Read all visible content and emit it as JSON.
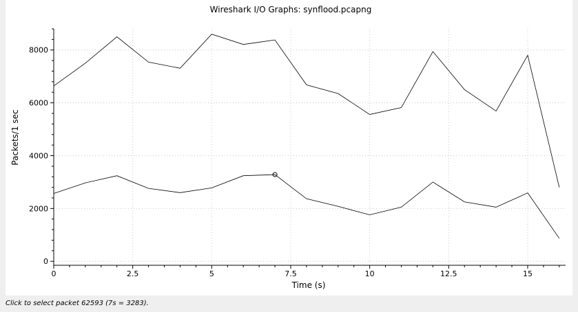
{
  "status_text": "Click to select packet 62593 (7s = 3283).",
  "chart_data": {
    "type": "line",
    "title": "Wireshark I/O Graphs: synflood.pcapng",
    "xlabel": "Time (s)",
    "ylabel": "Packets/1 sec",
    "xlim": [
      0,
      16.2
    ],
    "ylim": [
      -150,
      8800
    ],
    "x_ticks": [
      0,
      2.5,
      5,
      7.5,
      10,
      12.5,
      15
    ],
    "x_tick_labels": [
      "0",
      "2.5",
      "5",
      "7.5",
      "10",
      "12.5",
      "15"
    ],
    "y_ticks": [
      0,
      2000,
      4000,
      6000,
      8000
    ],
    "y_tick_labels": [
      "0",
      "2000",
      "4000",
      "6000",
      "8000"
    ],
    "grid": true,
    "x": [
      0,
      1,
      2,
      3,
      4,
      5,
      6,
      7,
      8,
      9,
      10,
      11,
      12,
      13,
      14,
      15,
      16
    ],
    "series": [
      {
        "color": "#000000",
        "values": [
          6640,
          7500,
          8500,
          7540,
          7310,
          8600,
          8210,
          8380,
          6680,
          6350,
          5560,
          5820,
          7940,
          6500,
          5690,
          7800,
          2800
        ]
      },
      {
        "color": "#000000",
        "values": [
          2570,
          2970,
          3240,
          2760,
          2600,
          2780,
          3240,
          3283,
          2370,
          2080,
          1760,
          2050,
          3000,
          2250,
          2050,
          2590,
          870
        ]
      }
    ],
    "highlight": {
      "series_index": 1,
      "x": 7,
      "y": 3283
    }
  }
}
